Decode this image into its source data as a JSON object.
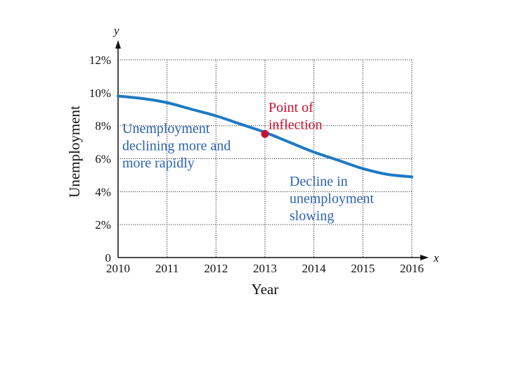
{
  "chart_data": {
    "type": "line",
    "title": "",
    "xlabel": "Year",
    "ylabel": "Unemployment",
    "x_axis_var": "x",
    "y_axis_var": "y",
    "xlim": [
      2010,
      2016
    ],
    "ylim": [
      0,
      12
    ],
    "grid": true,
    "x_ticks": [
      "2010",
      "2011",
      "2012",
      "2013",
      "2014",
      "2015",
      "2016"
    ],
    "y_ticks": [
      {
        "value": 0,
        "label": "0"
      },
      {
        "value": 2,
        "label": "2%"
      },
      {
        "value": 4,
        "label": "4%"
      },
      {
        "value": 6,
        "label": "6%"
      },
      {
        "value": 8,
        "label": "8%"
      },
      {
        "value": 10,
        "label": "10%"
      },
      {
        "value": 12,
        "label": "12%"
      }
    ],
    "series": [
      {
        "x": [
          2010,
          2010.5,
          2011,
          2011.5,
          2012,
          2012.5,
          2013,
          2013.5,
          2014,
          2014.5,
          2015,
          2015.5,
          2016
        ],
        "y": [
          9.8,
          9.65,
          9.4,
          9.0,
          8.6,
          8.1,
          7.6,
          7.0,
          6.4,
          5.9,
          5.4,
          5.05,
          4.9
        ]
      }
    ],
    "highlight_point": {
      "x": 2013,
      "y": 7.5
    },
    "annotations": [
      {
        "id": "declining",
        "lines": [
          "Unemployment",
          "declining more and",
          "more rapidly"
        ]
      },
      {
        "id": "inflection",
        "lines": [
          "Point of",
          "inflection"
        ]
      },
      {
        "id": "slowing",
        "lines": [
          "Decline in",
          "unemployment",
          "slowing"
        ]
      }
    ],
    "colors": {
      "curve": "#1e7ac4",
      "point": "#c8102e",
      "annotation": "#2b63b0",
      "inflection_text": "#c8102e"
    }
  }
}
